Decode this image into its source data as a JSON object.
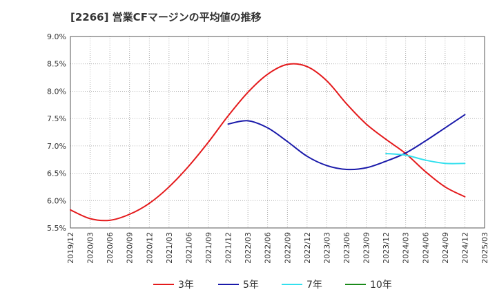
{
  "chart_data": {
    "type": "line",
    "title": "[2266]  営業CFマージンの平均値の推移",
    "xlabel": "",
    "ylabel": "",
    "x_ticks": [
      "2019/12",
      "2020/03",
      "2020/06",
      "2020/09",
      "2020/12",
      "2021/03",
      "2021/06",
      "2021/09",
      "2021/12",
      "2022/03",
      "2022/06",
      "2022/09",
      "2022/12",
      "2023/03",
      "2023/06",
      "2023/09",
      "2023/12",
      "2024/03",
      "2024/06",
      "2024/09",
      "2024/12",
      "2025/03"
    ],
    "y_ticks": [
      "5.5%",
      "6.0%",
      "6.5%",
      "7.0%",
      "7.5%",
      "8.0%",
      "8.5%",
      "9.0%"
    ],
    "ylim": [
      5.5,
      9.0
    ],
    "grid": true,
    "legend_position": "bottom",
    "series": [
      {
        "name": "3年",
        "color": "#e41a1c",
        "points": [
          [
            "2019/12",
            5.83
          ],
          [
            "2020/03",
            5.67
          ],
          [
            "2020/06",
            5.64
          ],
          [
            "2020/09",
            5.75
          ],
          [
            "2020/12",
            5.95
          ],
          [
            "2021/03",
            6.25
          ],
          [
            "2021/06",
            6.63
          ],
          [
            "2021/09",
            7.07
          ],
          [
            "2021/12",
            7.55
          ],
          [
            "2022/03",
            7.98
          ],
          [
            "2022/06",
            8.31
          ],
          [
            "2022/09",
            8.49
          ],
          [
            "2022/12",
            8.45
          ],
          [
            "2023/03",
            8.19
          ],
          [
            "2023/06",
            7.77
          ],
          [
            "2023/09",
            7.4
          ],
          [
            "2023/12",
            7.12
          ],
          [
            "2024/03",
            6.86
          ],
          [
            "2024/06",
            6.53
          ],
          [
            "2024/09",
            6.25
          ],
          [
            "2024/12",
            6.07
          ]
        ]
      },
      {
        "name": "5年",
        "color": "#1a1aaa",
        "points": [
          [
            "2021/12",
            7.4
          ],
          [
            "2022/03",
            7.46
          ],
          [
            "2022/06",
            7.33
          ],
          [
            "2022/09",
            7.08
          ],
          [
            "2022/12",
            6.81
          ],
          [
            "2023/03",
            6.64
          ],
          [
            "2023/06",
            6.57
          ],
          [
            "2023/09",
            6.6
          ],
          [
            "2023/12",
            6.72
          ],
          [
            "2024/03",
            6.87
          ],
          [
            "2024/06",
            7.09
          ],
          [
            "2024/09",
            7.33
          ],
          [
            "2024/12",
            7.57
          ]
        ]
      },
      {
        "name": "7年",
        "color": "#33e0ee",
        "points": [
          [
            "2023/12",
            6.86
          ],
          [
            "2024/03",
            6.83
          ],
          [
            "2024/06",
            6.74
          ],
          [
            "2024/09",
            6.68
          ],
          [
            "2024/12",
            6.68
          ]
        ]
      },
      {
        "name": "10年",
        "color": "#1a8a1a",
        "points": []
      }
    ]
  }
}
